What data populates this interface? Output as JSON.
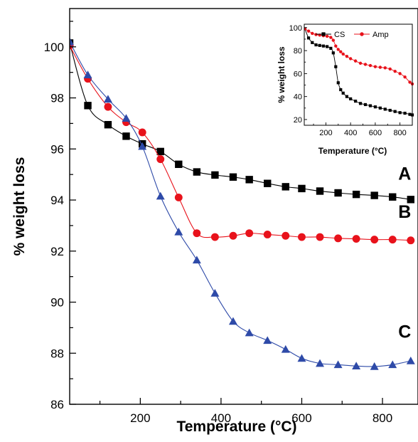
{
  "chart_data": [
    {
      "type": "line",
      "title": "",
      "xlabel": "Temperature (°C)",
      "ylabel": "% weight loss",
      "xlim": [
        25,
        888
      ],
      "ylim": [
        86,
        101.5
      ],
      "xticks": [
        200,
        400,
        600,
        800
      ],
      "yticks": [
        86,
        88,
        90,
        92,
        94,
        96,
        98,
        100
      ],
      "grid": false,
      "series": [
        {
          "name": "A",
          "color": "#000000",
          "marker": "square",
          "x": [
            25,
            70,
            120,
            165,
            205,
            250,
            295,
            340,
            385,
            430,
            470,
            515,
            560,
            600,
            645,
            690,
            735,
            780,
            825,
            870
          ],
          "values": [
            100.15,
            97.7,
            96.95,
            96.5,
            96.2,
            95.9,
            95.4,
            95.1,
            94.98,
            94.9,
            94.8,
            94.65,
            94.52,
            94.45,
            94.35,
            94.28,
            94.22,
            94.18,
            94.12,
            94.02
          ]
        },
        {
          "name": "B",
          "color": "#e8121b",
          "marker": "circle",
          "x": [
            25,
            70,
            120,
            165,
            205,
            250,
            295,
            340,
            385,
            430,
            470,
            515,
            560,
            600,
            645,
            690,
            735,
            780,
            825,
            870
          ],
          "values": [
            100.05,
            98.75,
            97.65,
            97.05,
            96.65,
            95.6,
            94.1,
            92.7,
            92.55,
            92.6,
            92.7,
            92.65,
            92.6,
            92.55,
            92.55,
            92.5,
            92.48,
            92.45,
            92.45,
            92.42
          ]
        },
        {
          "name": "C",
          "color": "#2e4aa8",
          "marker": "triangle",
          "x": [
            25,
            70,
            120,
            165,
            205,
            250,
            295,
            340,
            385,
            430,
            470,
            515,
            560,
            600,
            645,
            690,
            735,
            780,
            825,
            870
          ],
          "values": [
            100.2,
            98.9,
            97.95,
            97.2,
            96.1,
            94.15,
            92.75,
            91.65,
            90.35,
            89.25,
            88.8,
            88.5,
            88.15,
            87.8,
            87.6,
            87.55,
            87.5,
            87.48,
            87.55,
            87.7
          ]
        }
      ]
    },
    {
      "type": "line",
      "title": "",
      "xlabel": "Temperature (°C)",
      "ylabel": "% weight loss",
      "xlim": [
        25,
        900
      ],
      "ylim": [
        15,
        103
      ],
      "xticks": [
        200,
        400,
        600,
        800
      ],
      "yticks": [
        20,
        40,
        60,
        80,
        100
      ],
      "legend": "top",
      "series": [
        {
          "name": "CS",
          "color": "#000000",
          "marker": "square",
          "x": [
            30,
            60,
            90,
            120,
            150,
            180,
            210,
            240,
            260,
            280,
            300,
            320,
            340,
            370,
            400,
            440,
            480,
            520,
            560,
            600,
            640,
            680,
            720,
            760,
            800,
            840,
            880,
            900
          ],
          "values": [
            99,
            91,
            87,
            85,
            84.5,
            84,
            83.5,
            82,
            78,
            66,
            52,
            46,
            43,
            40,
            38,
            36,
            34,
            33,
            32,
            31,
            30,
            29,
            28,
            27,
            26,
            25.5,
            24.5,
            24
          ]
        },
        {
          "name": "Amp",
          "color": "#e8121b",
          "marker": "circle",
          "x": [
            30,
            60,
            90,
            120,
            150,
            180,
            210,
            240,
            260,
            280,
            300,
            320,
            340,
            370,
            400,
            440,
            480,
            520,
            560,
            600,
            640,
            680,
            720,
            760,
            800,
            840,
            880,
            900
          ],
          "values": [
            99,
            97,
            95,
            94,
            93.5,
            93,
            92.5,
            91.5,
            89,
            84,
            81,
            79,
            77,
            75,
            73,
            71,
            69,
            68,
            67,
            66,
            65.5,
            65,
            64,
            62,
            60,
            57,
            52.5,
            51
          ]
        }
      ]
    }
  ]
}
